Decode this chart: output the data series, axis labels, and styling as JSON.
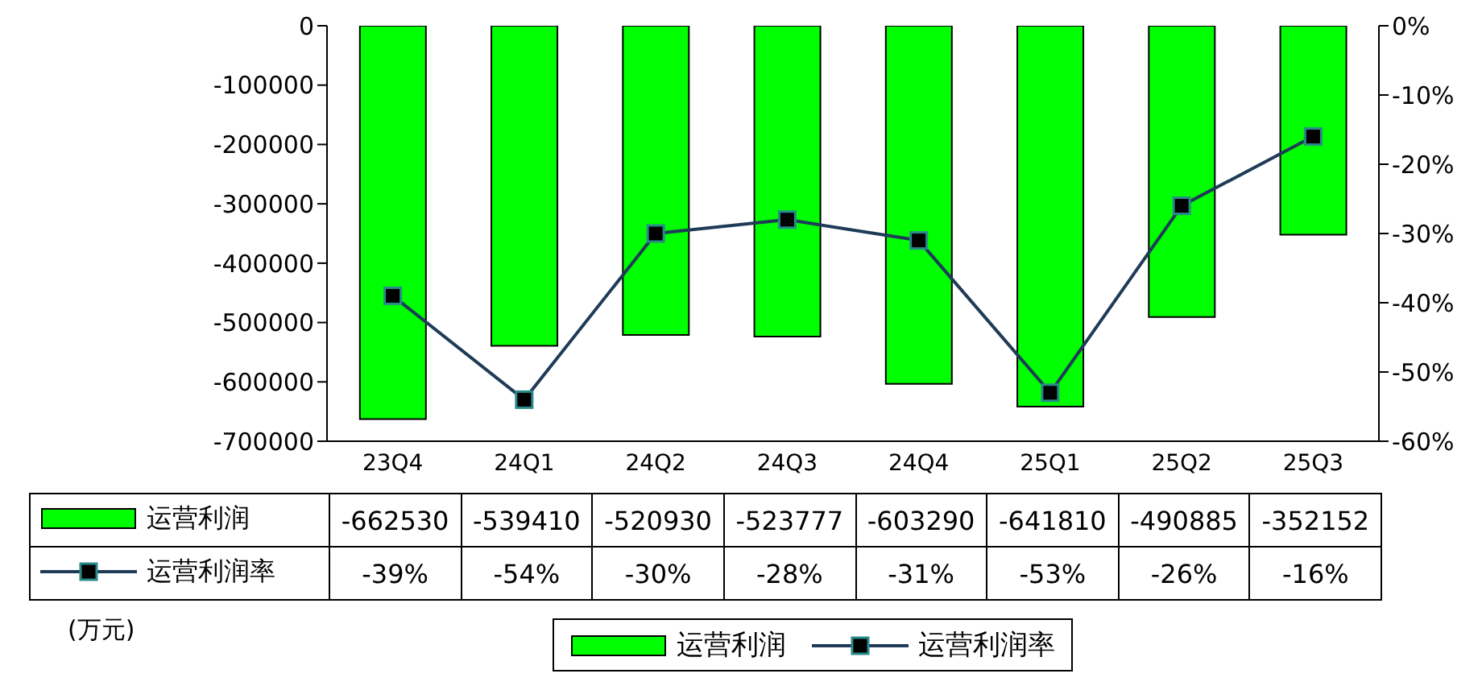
{
  "chart_data": {
    "type": "bar",
    "categories": [
      "23Q4",
      "24Q1",
      "24Q2",
      "24Q3",
      "24Q4",
      "25Q1",
      "25Q2",
      "25Q3"
    ],
    "series": [
      {
        "name": "运营利润",
        "color": "#00ff00",
        "values": [
          -662530,
          -539410,
          -520930,
          -523777,
          -603290,
          -641810,
          -490885,
          -352152
        ],
        "value_labels": [
          "-662530",
          "-539410",
          "-520930",
          "-523777",
          "-603290",
          "-641810",
          "-490885",
          "-352152"
        ]
      },
      {
        "name": "运营利润率",
        "type": "line",
        "axis": "y2",
        "color": "#1f3b57",
        "marker": "square",
        "values": [
          -39,
          -54,
          -30,
          -28,
          -31,
          -53,
          -26,
          -16
        ],
        "value_labels": [
          "-39%",
          "-54%",
          "-30%",
          "-28%",
          "-31%",
          "-53%",
          "-26%",
          "-16%"
        ]
      }
    ],
    "ylim": [
      -700000,
      0
    ],
    "yticks": [
      -700000,
      -600000,
      -500000,
      -400000,
      -300000,
      -200000,
      -100000,
      0
    ],
    "y2lim": [
      -60,
      0
    ],
    "y2ticks": [
      {
        "value": -60,
        "label": "-60%"
      },
      {
        "value": -50,
        "label": "-50%"
      },
      {
        "value": -40,
        "label": "-40%"
      },
      {
        "value": -30,
        "label": "-30%"
      },
      {
        "value": -20,
        "label": "-20%"
      },
      {
        "value": -10,
        "label": "-10%"
      },
      {
        "value": 0,
        "label": "0%"
      }
    ],
    "legend": "bottom",
    "annotations": [
      "(万元)"
    ]
  }
}
